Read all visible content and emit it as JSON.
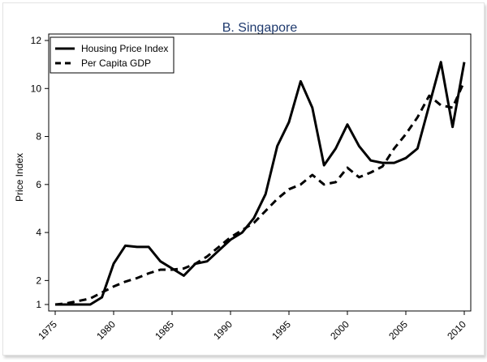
{
  "chart_data": {
    "type": "line",
    "title": "B. Singapore",
    "xlabel": "",
    "ylabel": "Price Index",
    "xlim": [
      1975,
      2010
    ],
    "ylim": [
      1,
      12
    ],
    "x_ticks": [
      "1975",
      "1980",
      "1985",
      "1990",
      "1995",
      "2000",
      "2005",
      "2010"
    ],
    "y_ticks": [
      "1",
      "2",
      "4",
      "6",
      "8",
      "10",
      "12"
    ],
    "legend_position": "top-left",
    "grid": false,
    "series": [
      {
        "name": "Housing Price Index",
        "style": "solid",
        "color": "#000000",
        "x": [
          1975,
          1976,
          1977,
          1978,
          1979,
          1980,
          1981,
          1982,
          1983,
          1984,
          1985,
          1986,
          1987,
          1988,
          1989,
          1990,
          1991,
          1992,
          1993,
          1994,
          1995,
          1996,
          1997,
          1998,
          1999,
          2000,
          2001,
          2002,
          2003,
          2004,
          2005,
          2006,
          2007,
          2008,
          2009,
          2010
        ],
        "values": [
          1.0,
          1.0,
          1.0,
          1.0,
          1.3,
          2.7,
          3.45,
          3.4,
          3.4,
          2.8,
          2.5,
          2.2,
          2.7,
          2.8,
          3.25,
          3.7,
          4.0,
          4.6,
          5.6,
          7.6,
          8.6,
          10.3,
          9.2,
          6.8,
          7.5,
          8.5,
          7.6,
          7.0,
          6.9,
          6.9,
          7.1,
          7.5,
          9.3,
          11.1,
          8.4,
          11.1
        ]
      },
      {
        "name": "Per Capita GDP",
        "style": "dashed",
        "color": "#000000",
        "x": [
          1975,
          1976,
          1977,
          1978,
          1979,
          1980,
          1981,
          1982,
          1983,
          1984,
          1985,
          1986,
          1987,
          1988,
          1989,
          1990,
          1991,
          1992,
          1993,
          1994,
          1995,
          1996,
          1997,
          1998,
          1999,
          2000,
          2001,
          2002,
          2003,
          2004,
          2005,
          2006,
          2007,
          2008,
          2009,
          2010
        ],
        "values": [
          1.0,
          1.05,
          1.15,
          1.25,
          1.5,
          1.75,
          1.95,
          2.1,
          2.3,
          2.45,
          2.45,
          2.5,
          2.7,
          3.0,
          3.4,
          3.8,
          4.1,
          4.4,
          4.9,
          5.4,
          5.8,
          6.0,
          6.4,
          6.0,
          6.1,
          6.7,
          6.3,
          6.5,
          6.75,
          7.5,
          8.1,
          8.8,
          9.7,
          9.3,
          9.2,
          10.3
        ]
      }
    ]
  }
}
